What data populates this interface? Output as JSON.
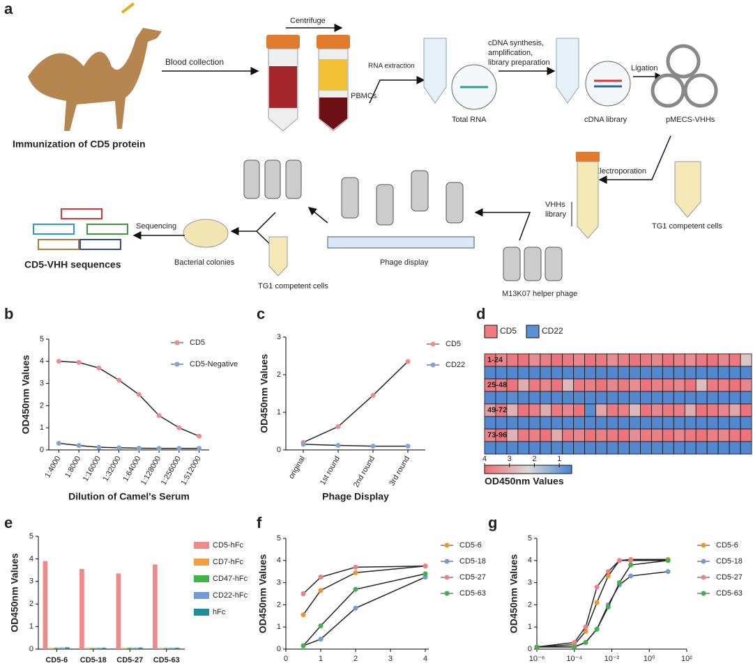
{
  "diagram": {
    "panel": "a",
    "immunization": "Immunization of CD5 protein",
    "blood": "Blood collection",
    "centrifuge": "Centrifuge",
    "pbmc": "PBMCs",
    "rna_extraction": "RNA extraction",
    "total_rna": "Total RNA",
    "cdna_steps": [
      "cDNA synthesis,",
      "amplification,",
      "library preparation"
    ],
    "cdna_library": "cDNA library",
    "ligation": "Ligation",
    "plasmid": "pMECS-VHHs",
    "electroporation": "Electroporation",
    "tg1_top": "TG1 competent cells",
    "vhh_library": [
      "VHHs",
      "library"
    ],
    "helper": "M13K07 helper phage",
    "phage_display": "Phage display",
    "tg1_bottom": "TG1 competent cells",
    "colonies": "Bacterial colonies",
    "sequencing": "Sequencing",
    "sequences": "CD5-VHH sequences"
  },
  "chart_data": [
    {
      "panel": "b",
      "type": "line",
      "ylabel": "OD450nm Values",
      "xlabel": "Dilution of Camel's Serum",
      "categories": [
        "1:4000",
        "1:8000",
        "1:16000",
        "1:32000",
        "1:64000",
        "1:128000",
        "1:256000",
        "1:512000"
      ],
      "series": [
        {
          "name": "CD5",
          "color": "#ef8a90",
          "values": [
            4.0,
            3.95,
            3.7,
            3.15,
            2.5,
            1.55,
            1.0,
            0.62
          ]
        },
        {
          "name": "CD5-Negative",
          "color": "#7fa6d8",
          "values": [
            0.3,
            0.2,
            0.12,
            0.1,
            0.08,
            0.07,
            0.07,
            0.07
          ]
        }
      ],
      "ylim": [
        0,
        5
      ],
      "yticks": [
        0,
        1,
        2,
        3,
        4,
        5
      ]
    },
    {
      "panel": "c",
      "type": "line",
      "ylabel": "OD450nm Values",
      "xlabel": "Phage Display",
      "categories": [
        "original",
        "1st round",
        "2nd round",
        "3rd round"
      ],
      "series": [
        {
          "name": "CD5",
          "color": "#ef8a90",
          "values": [
            0.2,
            0.62,
            1.45,
            2.35
          ]
        },
        {
          "name": "CD22",
          "color": "#7fa6d8",
          "values": [
            0.15,
            0.12,
            0.1,
            0.1
          ]
        }
      ],
      "ylim": [
        0,
        3
      ],
      "yticks": [
        0,
        1,
        2,
        3
      ]
    },
    {
      "panel": "d",
      "type": "heatmap",
      "zlabel": "OD450nm  Values",
      "rows": [
        "1-24",
        "25-48",
        "49-72",
        "73-96"
      ],
      "series": [
        {
          "name": "CD5",
          "color": "#ee7b80"
        },
        {
          "name": "CD22",
          "color": "#5b8fd1"
        }
      ],
      "colorscale": [
        "#ee6e74",
        "#d9d9d9",
        "#4a83cf"
      ],
      "zlim": [
        0.5,
        4
      ],
      "zticks": [
        4,
        3,
        2,
        1
      ],
      "values": [
        [
          3.9,
          3.6,
          3.8,
          3.9,
          3.5,
          3.7,
          3.9,
          3.8,
          3.6,
          3.9,
          3.8,
          3.5,
          3.7,
          3.9,
          3.8,
          3.6,
          3.9,
          3.7,
          3.5,
          3.8,
          3.9,
          3.6,
          3.8,
          2.6
        ],
        [
          0.6,
          0.6,
          0.6,
          0.6,
          0.6,
          0.6,
          0.6,
          0.6,
          0.6,
          0.6,
          0.6,
          0.6,
          0.6,
          0.6,
          0.6,
          0.6,
          0.6,
          0.6,
          0.6,
          0.6,
          0.6,
          0.6,
          0.6,
          0.6
        ],
        [
          3.8,
          3.7,
          3.9,
          3.0,
          3.8,
          3.6,
          3.9,
          2.8,
          3.8,
          3.7,
          3.9,
          3.6,
          3.8,
          3.5,
          3.9,
          3.7,
          3.8,
          3.6,
          3.9,
          2.7,
          3.8,
          3.7,
          3.9,
          3.6
        ],
        [
          0.6,
          0.6,
          0.7,
          0.6,
          0.6,
          0.6,
          0.6,
          0.6,
          0.6,
          0.6,
          0.6,
          0.6,
          0.6,
          0.6,
          0.6,
          0.6,
          0.6,
          0.6,
          0.6,
          0.6,
          0.6,
          0.6,
          0.6,
          0.6
        ],
        [
          3.2,
          3.8,
          2.9,
          3.9,
          3.7,
          3.0,
          3.8,
          3.6,
          3.9,
          0.7,
          3.1,
          3.8,
          3.7,
          2.8,
          3.9,
          3.6,
          3.8,
          3.7,
          3.0,
          3.9,
          3.8,
          3.6,
          3.1,
          3.9
        ],
        [
          0.6,
          0.6,
          0.6,
          0.6,
          0.6,
          0.6,
          0.6,
          0.6,
          0.6,
          0.6,
          0.6,
          0.6,
          0.6,
          0.6,
          0.6,
          0.6,
          0.6,
          0.6,
          0.6,
          0.6,
          0.6,
          0.6,
          0.6,
          0.6
        ],
        [
          3.6,
          3.9,
          2.9,
          3.8,
          3.7,
          3.9,
          3.0,
          3.8,
          3.6,
          3.9,
          3.7,
          3.8,
          3.9,
          3.5,
          3.8,
          3.7,
          3.9,
          3.6,
          3.8,
          3.9,
          3.7,
          3.6,
          3.8,
          3.9
        ],
        [
          0.6,
          0.6,
          0.6,
          0.6,
          0.6,
          0.6,
          0.6,
          0.6,
          0.6,
          0.6,
          0.6,
          0.6,
          0.6,
          0.6,
          0.6,
          0.6,
          0.6,
          0.6,
          0.6,
          0.6,
          0.6,
          0.6,
          0.6,
          0.6
        ]
      ]
    },
    {
      "panel": "e",
      "type": "bar",
      "ylabel": "OD450nm Values",
      "categories": [
        "CD5-6",
        "CD5-18",
        "CD5-27",
        "CD5-63"
      ],
      "series": [
        {
          "name": "CD5-hFc",
          "color": "#f08a8a",
          "values": [
            3.9,
            3.55,
            3.35,
            3.75
          ]
        },
        {
          "name": "CD7-hFc",
          "color": "#f0a040",
          "values": [
            0.05,
            0.05,
            0.05,
            0.05
          ]
        },
        {
          "name": "CD47-hFc",
          "color": "#3fb34a",
          "values": [
            0.06,
            0.05,
            0.06,
            0.05
          ]
        },
        {
          "name": "CD22-hFc",
          "color": "#6f9bd6",
          "values": [
            0.07,
            0.06,
            0.06,
            0.06
          ]
        },
        {
          "name": "hFc",
          "color": "#1d8f9c",
          "values": [
            0.08,
            0.06,
            0.07,
            0.06
          ]
        }
      ],
      "ylim": [
        0,
        5
      ],
      "yticks": [
        0,
        1,
        2,
        3,
        4,
        5
      ]
    },
    {
      "panel": "f",
      "type": "line",
      "ylabel": "OD450nm Values",
      "x": [
        0.5,
        1,
        2,
        4
      ],
      "series": [
        {
          "name": "CD5-6",
          "color": "#f0922e",
          "values": [
            1.55,
            2.65,
            3.45,
            3.75
          ]
        },
        {
          "name": "CD5-18",
          "color": "#6f9bd6",
          "values": [
            0.15,
            0.45,
            1.85,
            3.25
          ]
        },
        {
          "name": "CD5-27",
          "color": "#ef7f88",
          "values": [
            2.5,
            3.25,
            3.7,
            3.75
          ]
        },
        {
          "name": "CD5-63",
          "color": "#3fb34a",
          "values": [
            0.15,
            1.05,
            2.7,
            3.4
          ]
        }
      ],
      "xlim": [
        0,
        4.1
      ],
      "xticks": [
        0,
        1,
        2,
        3,
        4
      ],
      "ylim": [
        0,
        5
      ],
      "yticks": [
        0,
        1,
        2,
        3,
        4,
        5
      ]
    },
    {
      "panel": "g",
      "type": "line",
      "xscale": "log",
      "ylabel": "OD450nm Values",
      "x": [
        1e-06,
        0.0001,
        0.0004,
        0.0016,
        0.0064,
        0.0256,
        0.1024,
        10
      ],
      "series": [
        {
          "name": "CD5-6",
          "color": "#f0922e",
          "values": [
            0.1,
            0.2,
            0.8,
            2.1,
            3.3,
            4.0,
            4.05,
            4.05
          ]
        },
        {
          "name": "CD5-18",
          "color": "#6f9bd6",
          "values": [
            0.1,
            0.1,
            0.3,
            0.9,
            2.0,
            2.9,
            3.3,
            3.5
          ]
        },
        {
          "name": "CD5-27",
          "color": "#ef7f88",
          "values": [
            0.1,
            0.3,
            1.0,
            2.8,
            3.5,
            4.0,
            4.0,
            4.0
          ]
        },
        {
          "name": "CD5-63",
          "color": "#3fb34a",
          "values": [
            0.1,
            0.1,
            0.3,
            0.9,
            1.9,
            3.0,
            3.8,
            4.0
          ]
        }
      ],
      "xlim": [
        1e-06,
        100
      ],
      "xticks": [
        {
          "value": 1e-06,
          "label": "10⁻⁶"
        },
        {
          "value": 0.0001,
          "label": "10⁻⁴"
        },
        {
          "value": 0.01,
          "label": "10⁻²"
        },
        {
          "value": 1,
          "label": "10⁰"
        },
        {
          "value": 100,
          "label": "10²"
        }
      ],
      "ylim": [
        0,
        5
      ],
      "yticks": [
        0,
        1,
        2,
        3,
        4,
        5
      ]
    }
  ]
}
